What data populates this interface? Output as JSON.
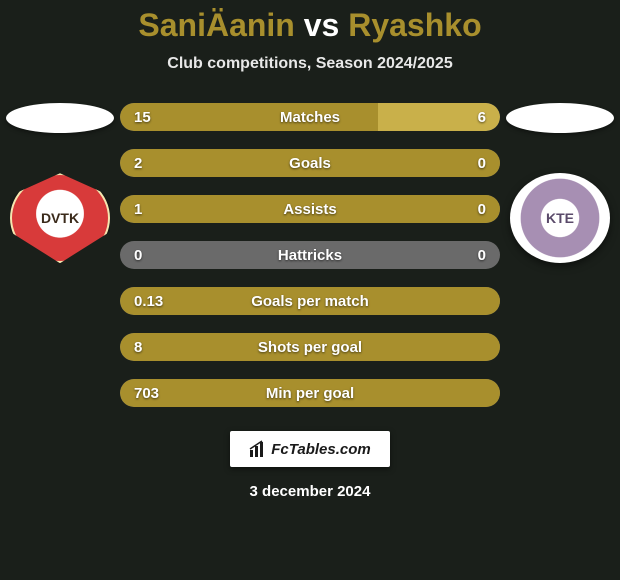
{
  "title": {
    "player1": "SaniÄanin",
    "vs": "vs",
    "player2": "Ryashko"
  },
  "subtitle": "Club competitions, Season 2024/2025",
  "colors": {
    "player1_bar": "#a88f2d",
    "player2_bar": "#c9b04a",
    "neutral_bar": "#6a6a6a",
    "title_accent": "#a88f2d",
    "background": "#1a1f1a"
  },
  "teams": {
    "left": {
      "short": "DVTK",
      "crest_class": "dvtk"
    },
    "right": {
      "short": "KTE",
      "crest_class": "kte"
    }
  },
  "stats": [
    {
      "label": "Matches",
      "left_val": "15",
      "right_val": "6",
      "left_pct": 68,
      "right_pct": 32,
      "right_color": "#c9b04a"
    },
    {
      "label": "Goals",
      "left_val": "2",
      "right_val": "0",
      "left_pct": 100,
      "right_pct": 0,
      "right_color": "#6a6a6a"
    },
    {
      "label": "Assists",
      "left_val": "1",
      "right_val": "0",
      "left_pct": 100,
      "right_pct": 0,
      "right_color": "#6a6a6a"
    },
    {
      "label": "Hattricks",
      "left_val": "0",
      "right_val": "0",
      "left_pct": 0,
      "right_pct": 0,
      "right_color": "#6a6a6a",
      "neutral": true
    },
    {
      "label": "Goals per match",
      "left_val": "0.13",
      "right_val": "",
      "left_pct": 100,
      "right_pct": 0,
      "right_color": "#6a6a6a"
    },
    {
      "label": "Shots per goal",
      "left_val": "8",
      "right_val": "",
      "left_pct": 100,
      "right_pct": 0,
      "right_color": "#6a6a6a"
    },
    {
      "label": "Min per goal",
      "left_val": "703",
      "right_val": "",
      "left_pct": 100,
      "right_pct": 0,
      "right_color": "#6a6a6a"
    }
  ],
  "footer": {
    "brand": "FcTables.com",
    "date": "3 december 2024"
  }
}
